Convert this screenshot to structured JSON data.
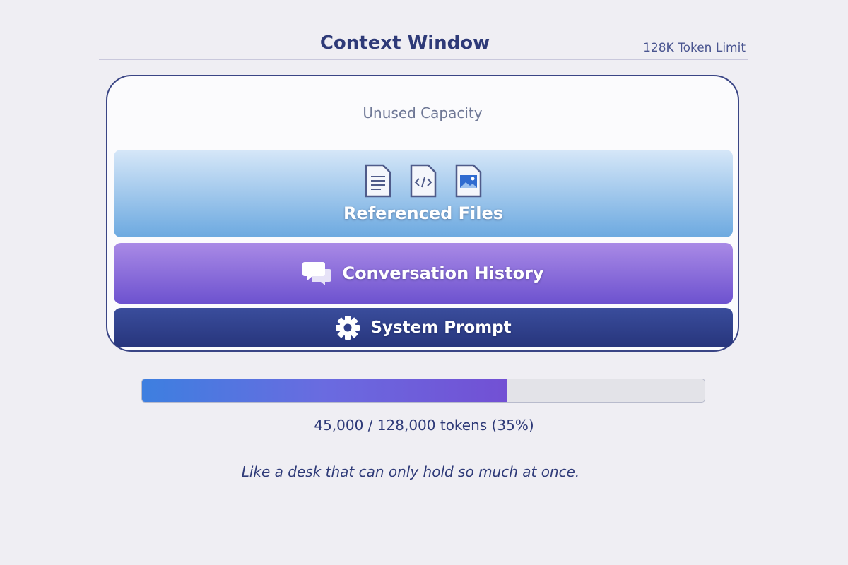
{
  "header": {
    "title": "Context Window",
    "limit_label": "128K Token Limit"
  },
  "window": {
    "unused_label": "Unused Capacity",
    "layers": {
      "files": {
        "label": "Referenced Files",
        "icons": [
          "document-icon",
          "code-file-icon",
          "image-file-icon"
        ]
      },
      "history": {
        "label": "Conversation History",
        "icon": "chat-bubbles-icon"
      },
      "system": {
        "label": "System Prompt",
        "icon": "gear-icon"
      }
    }
  },
  "usage": {
    "text": "45,000 / 128,000 tokens (35%)",
    "bar_fill_percent": 65
  },
  "footer": {
    "quote": "Like a desk that can only hold so much at once."
  },
  "colors": {
    "primary": "#2e3a78",
    "files": "#6ca9e0",
    "history": "#7a5ad6",
    "system": "#2e3d86"
  }
}
